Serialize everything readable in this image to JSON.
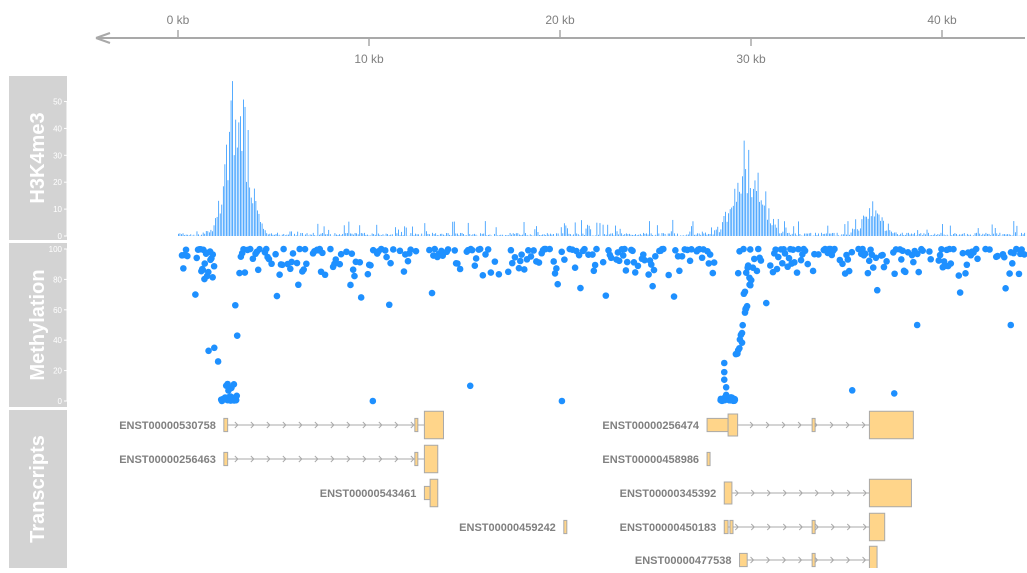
{
  "chart_data": {
    "type": "genome-browser",
    "genome_axis": {
      "top_ticks": [
        "0 kb",
        "20 kb",
        "40 kb"
      ],
      "bottom_ticks": [
        "10 kb",
        "30 kb"
      ],
      "tick_positions_kb": [
        0,
        10,
        20,
        30,
        40
      ],
      "range_kb": [
        -4.3,
        44.8
      ],
      "color": "#a9a9a9"
    },
    "tracks": [
      {
        "name": "H3K4me3",
        "type": "histogram",
        "ylim": [
          0,
          58
        ],
        "yticks": [
          0,
          10,
          20,
          30,
          40,
          50
        ],
        "color": "#1e90ff",
        "peaks": [
          {
            "center_kb": 3.1,
            "height": 58
          },
          {
            "center_kb": 29.8,
            "height": 33
          },
          {
            "center_kb": 36.3,
            "height": 10
          }
        ]
      },
      {
        "name": "Methylation",
        "type": "scatter",
        "ylim": [
          0,
          100
        ],
        "yticks": [
          0,
          20,
          40,
          60,
          80,
          100
        ],
        "color": "#1e90ff",
        "highlight_points": [
          {
            "x_kb": 1.6,
            "y": 33
          },
          {
            "x_kb": 1.9,
            "y": 35
          },
          {
            "x_kb": 2.1,
            "y": 26
          },
          {
            "x_kb": 3.0,
            "y": 63
          },
          {
            "x_kb": 3.1,
            "y": 43
          },
          {
            "x_kb": 10.2,
            "y": 0
          },
          {
            "x_kb": 15.3,
            "y": 10
          },
          {
            "x_kb": 20.1,
            "y": 0
          },
          {
            "x_kb": 35.3,
            "y": 7
          },
          {
            "x_kb": 37.5,
            "y": 5
          },
          {
            "x_kb": 38.7,
            "y": 50
          },
          {
            "x_kb": 43.6,
            "y": 50
          }
        ]
      },
      {
        "name": "Transcripts",
        "type": "gene-model",
        "exon_color": "#ffd58a",
        "exon_border": "#a9a9a9",
        "line_color": "#a9a9a9",
        "transcripts": [
          {
            "id": "ENST00000530758",
            "row": 0,
            "exons": [
              [
                2.4,
                2.6
              ],
              [
                12.4,
                12.5
              ],
              [
                12.9,
                13.9
              ]
            ]
          },
          {
            "id": "ENST00000256463",
            "row": 1,
            "exons": [
              [
                2.4,
                2.6
              ],
              [
                12.4,
                12.5
              ],
              [
                12.9,
                13.6
              ]
            ]
          },
          {
            "id": "ENST00000543461",
            "row": 2,
            "exons": [
              [
                12.9,
                13.2
              ],
              [
                13.2,
                13.6
              ]
            ]
          },
          {
            "id": "ENST00000459242",
            "row": 3,
            "exons": [
              [
                20.2,
                20.3
              ]
            ]
          },
          {
            "id": "ENST00000256474",
            "row": 0,
            "exons": [
              [
                27.7,
                28.8
              ],
              [
                28.8,
                29.3
              ],
              [
                33.2,
                33.3
              ],
              [
                36.2,
                38.5
              ]
            ]
          },
          {
            "id": "ENST00000458986",
            "row": 1,
            "exons": [
              [
                27.7,
                27.8
              ]
            ]
          },
          {
            "id": "ENST00000345392",
            "row": 2,
            "exons": [
              [
                28.6,
                29.0
              ],
              [
                36.2,
                38.4
              ]
            ]
          },
          {
            "id": "ENST00000450183",
            "row": 3,
            "exons": [
              [
                28.6,
                28.8
              ],
              [
                28.9,
                29.0
              ],
              [
                33.2,
                33.3
              ],
              [
                36.2,
                37.0
              ]
            ]
          },
          {
            "id": "ENST00000477538",
            "row": 4,
            "exons": [
              [
                29.4,
                29.8
              ],
              [
                33.2,
                33.3
              ],
              [
                36.2,
                36.6
              ]
            ]
          }
        ]
      }
    ]
  }
}
